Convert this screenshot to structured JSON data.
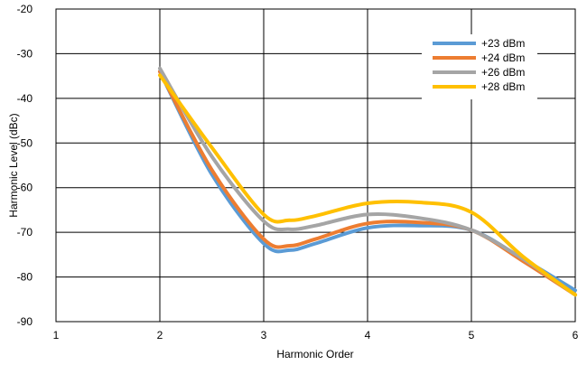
{
  "chart_data": {
    "type": "line",
    "title": "",
    "xlabel": "Harmonic Order",
    "ylabel": "Harmonic Level (dBc)",
    "xlim": [
      1,
      6
    ],
    "ylim": [
      -90,
      -20
    ],
    "x_ticks": [
      1,
      2,
      3,
      4,
      5,
      6
    ],
    "y_ticks": [
      -90,
      -80,
      -70,
      -60,
      -50,
      -40,
      -30,
      -20
    ],
    "grid": true,
    "legend_position": "top-right",
    "series": [
      {
        "name": "+23 dBm",
        "color": "#5B9BD5",
        "points": [
          [
            2,
            -34
          ],
          [
            2.5,
            -57
          ],
          [
            3,
            -72.5
          ],
          [
            3.25,
            -74
          ],
          [
            3.5,
            -72.5
          ],
          [
            4,
            -69
          ],
          [
            4.5,
            -68.5
          ],
          [
            5,
            -69.5
          ],
          [
            5.5,
            -76
          ],
          [
            6,
            -83
          ]
        ]
      },
      {
        "name": "+24 dBm",
        "color": "#ED7D31",
        "points": [
          [
            2,
            -34
          ],
          [
            2.5,
            -56
          ],
          [
            3,
            -71.5
          ],
          [
            3.25,
            -73
          ],
          [
            3.5,
            -71.5
          ],
          [
            4,
            -68
          ],
          [
            4.5,
            -67.8
          ],
          [
            5,
            -69.5
          ],
          [
            5.5,
            -76.5
          ],
          [
            6,
            -84
          ]
        ]
      },
      {
        "name": "+26 dBm",
        "color": "#A5A5A5",
        "points": [
          [
            2,
            -33.3
          ],
          [
            2.5,
            -53
          ],
          [
            3,
            -67.5
          ],
          [
            3.25,
            -69.3
          ],
          [
            3.5,
            -68.5
          ],
          [
            4,
            -66
          ],
          [
            4.5,
            -66.8
          ],
          [
            5,
            -69.5
          ],
          [
            5.5,
            -76
          ],
          [
            6,
            -84
          ]
        ]
      },
      {
        "name": "+28 dBm",
        "color": "#FFC000",
        "points": [
          [
            2,
            -34.8
          ],
          [
            2.5,
            -51
          ],
          [
            3,
            -66
          ],
          [
            3.25,
            -67.3
          ],
          [
            3.5,
            -66.3
          ],
          [
            4,
            -63.5
          ],
          [
            4.5,
            -63.3
          ],
          [
            5,
            -65.5
          ],
          [
            5.5,
            -75.5
          ],
          [
            6,
            -84
          ]
        ]
      }
    ]
  }
}
